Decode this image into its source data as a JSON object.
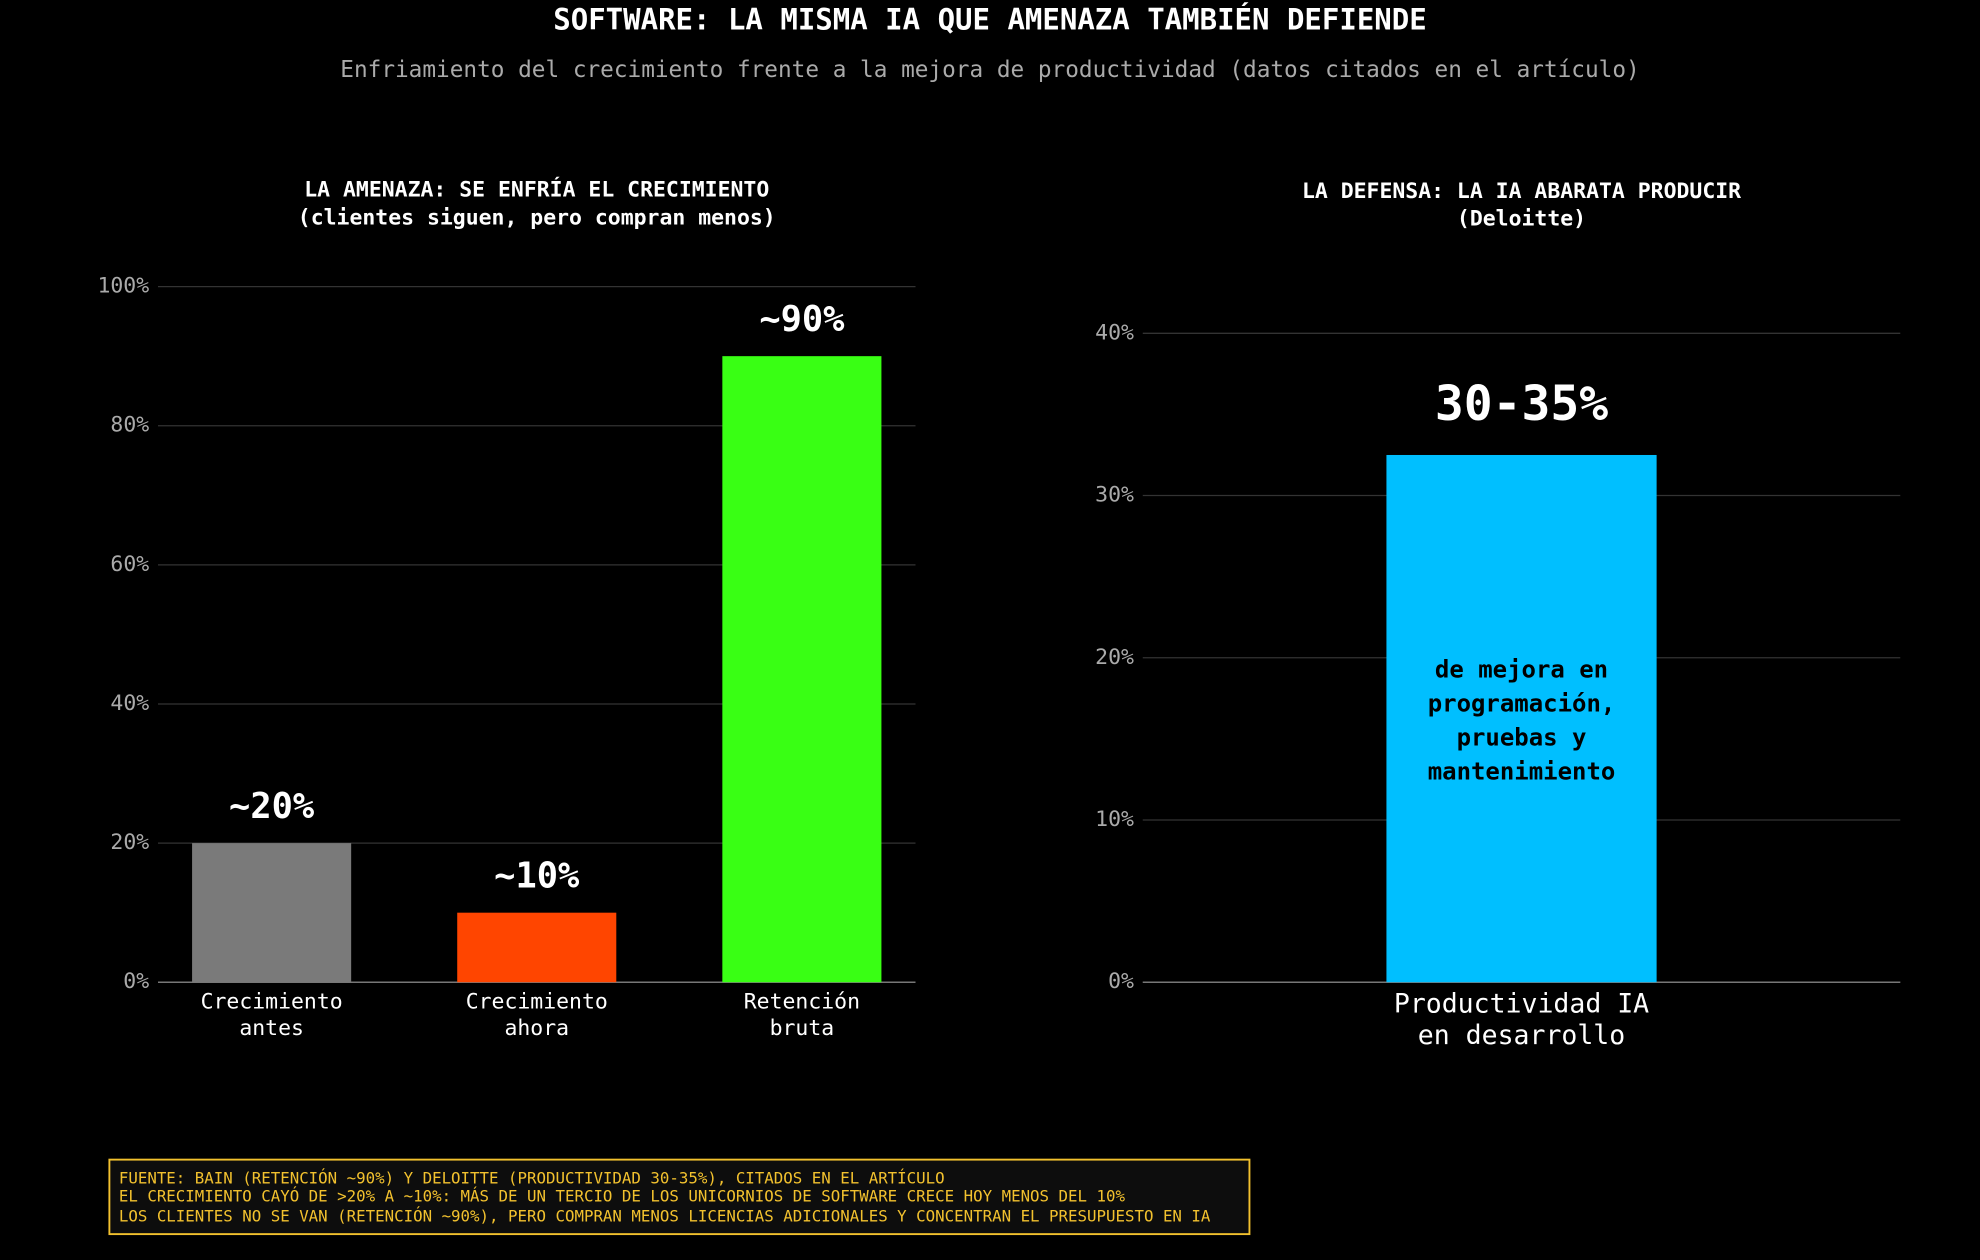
{
  "title": "SOFTWARE: LA MISMA IA QUE AMENAZA TAMBIÉN DEFIENDE",
  "subtitle": "Enfriamiento del crecimiento frente a la mejora de productividad (datos citados en el artículo)",
  "chart_data": [
    {
      "type": "bar",
      "title": [
        "LA AMENAZA: SE ENFRÍA EL CRECIMIENTO",
        "(clientes siguen, pero compran menos)"
      ],
      "categories": [
        [
          "Crecimiento",
          "antes"
        ],
        [
          "Crecimiento",
          "ahora"
        ],
        [
          "Retención",
          "bruta"
        ]
      ],
      "values": [
        20,
        10,
        90
      ],
      "value_labels": [
        "~20%",
        "~10%",
        "~90%"
      ],
      "colors": [
        "#7a7a7a",
        "#ff4500",
        "#39ff14"
      ],
      "ylim": [
        0,
        100
      ],
      "yticks": [
        {
          "value": 0,
          "label": "0%"
        },
        {
          "value": 20,
          "label": "20%"
        },
        {
          "value": 40,
          "label": "40%"
        },
        {
          "value": 60,
          "label": "60%"
        },
        {
          "value": 80,
          "label": "80%"
        },
        {
          "value": 100,
          "label": "100%"
        }
      ],
      "grid": true
    },
    {
      "type": "bar",
      "title": [
        "LA DEFENSA: LA IA ABARATA PRODUCIR",
        "(Deloitte)"
      ],
      "categories": [
        [
          "Productividad IA",
          "en desarrollo"
        ]
      ],
      "values": [
        32.5
      ],
      "value_labels": [
        "30-35%"
      ],
      "colors": [
        "#00bfff"
      ],
      "annotation": [
        "de mejora en",
        "programación,",
        "pruebas y",
        "mantenimiento"
      ],
      "ylim": [
        0,
        40
      ],
      "yticks": [
        {
          "value": 0,
          "label": "0%"
        },
        {
          "value": 10,
          "label": "10%"
        },
        {
          "value": 20,
          "label": "20%"
        },
        {
          "value": 30,
          "label": "30%"
        },
        {
          "value": 40,
          "label": "40%"
        }
      ],
      "grid": true
    }
  ],
  "footer": [
    "FUENTE: BAIN (RETENCIÓN ~90%) Y DELOITTE (PRODUCTIVIDAD 30-35%), CITADOS EN EL ARTÍCULO",
    "EL CRECIMIENTO CAYÓ DE >20% A ~10%: MÁS DE UN TERCIO DE LOS UNICORNIOS DE SOFTWARE CRECE HOY MENOS DEL 10%",
    "LOS CLIENTES NO SE VAN (RETENCIÓN ~90%), PERO COMPRAN MENOS LICENCIAS ADICIONALES Y CONCENTRAN EL PRESUPUESTO EN IA"
  ]
}
